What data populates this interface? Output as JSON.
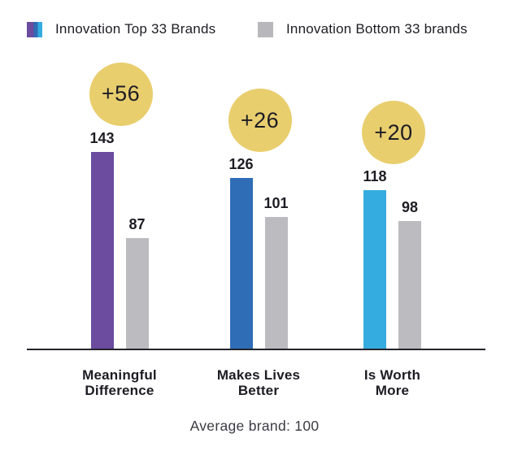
{
  "legend": {
    "items": [
      {
        "label": "Innovation Top 33 Brands",
        "swatch": "top-brands-tricolor"
      },
      {
        "label": "Innovation Bottom 33 brands",
        "swatch": "bottom-brands-gray"
      }
    ]
  },
  "chart_data": {
    "type": "bar",
    "categories": [
      [
        "Meaningful",
        "Difference"
      ],
      [
        "Makes Lives",
        "Better"
      ],
      [
        "Is Worth",
        "More"
      ]
    ],
    "series": [
      {
        "name": "Innovation Top 33 Brands",
        "values": [
          143,
          126,
          118
        ]
      },
      {
        "name": "Innovation Bottom 33 brands",
        "values": [
          87,
          101,
          98
        ]
      }
    ],
    "difference_badges": [
      "+56",
      "+26",
      "+20"
    ],
    "note": "Average brand: 100",
    "ylim": [
      15,
      160
    ],
    "grid": false,
    "legend_position": "top"
  },
  "colors": {
    "top_series": [
      "#6b4c9e",
      "#2f6db6",
      "#35acdf"
    ],
    "bottom_series": "#bcbcc0",
    "legend_gray": "#b8b8bc",
    "badge": "#e9ce6e",
    "text": "#1d1c24",
    "note_text": "#3c3b43",
    "axis": "#25242c"
  }
}
